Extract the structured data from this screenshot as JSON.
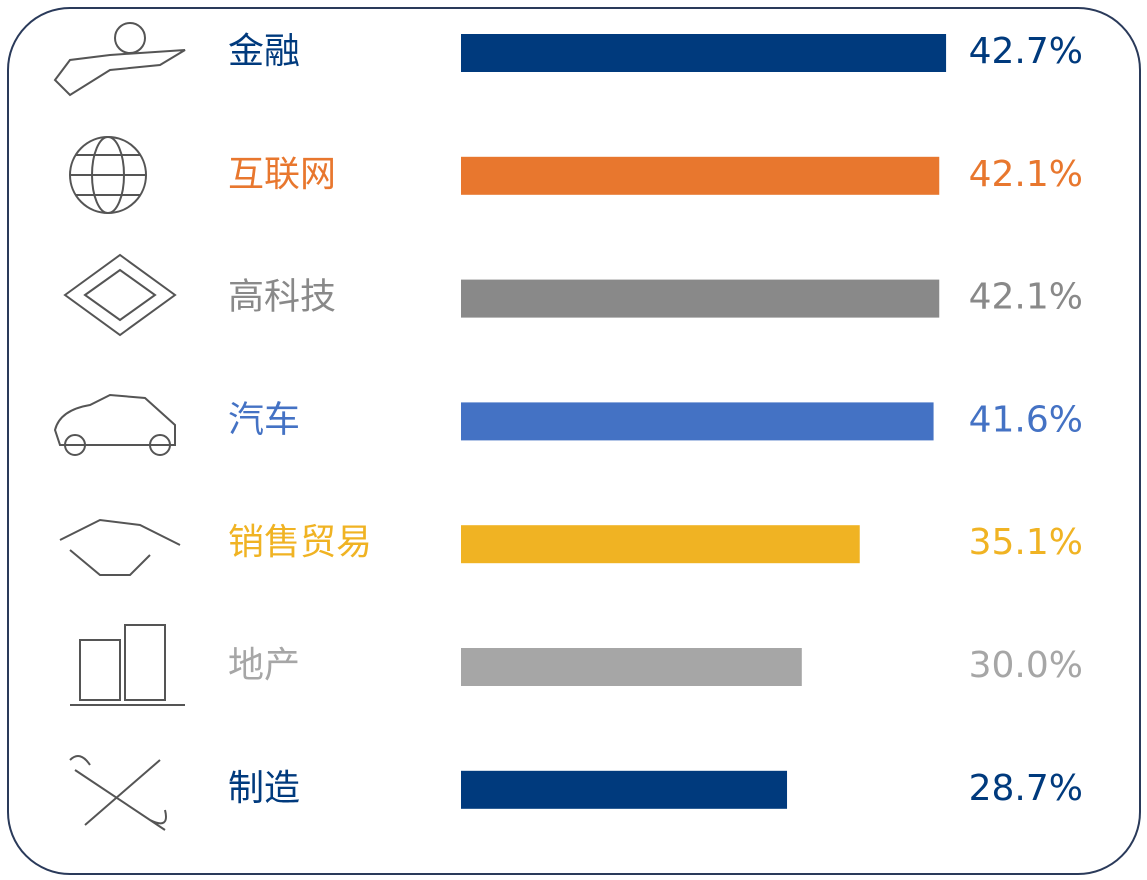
{
  "chart_data": {
    "type": "bar",
    "orientation": "horizontal",
    "categories": [
      "金融",
      "互联网",
      "高科技",
      "汽车",
      "销售贸易",
      "地产",
      "制造"
    ],
    "values": [
      42.7,
      42.1,
      42.1,
      41.6,
      35.1,
      30.0,
      28.7
    ],
    "value_labels": [
      "42.7%",
      "42.1%",
      "42.1%",
      "41.6%",
      "35.1%",
      "30.0%",
      "28.7%"
    ],
    "colors": [
      "#003a7d",
      "#e8772e",
      "#898989",
      "#4472c4",
      "#f0b323",
      "#a6a6a6",
      "#003a7d"
    ]
  }
}
